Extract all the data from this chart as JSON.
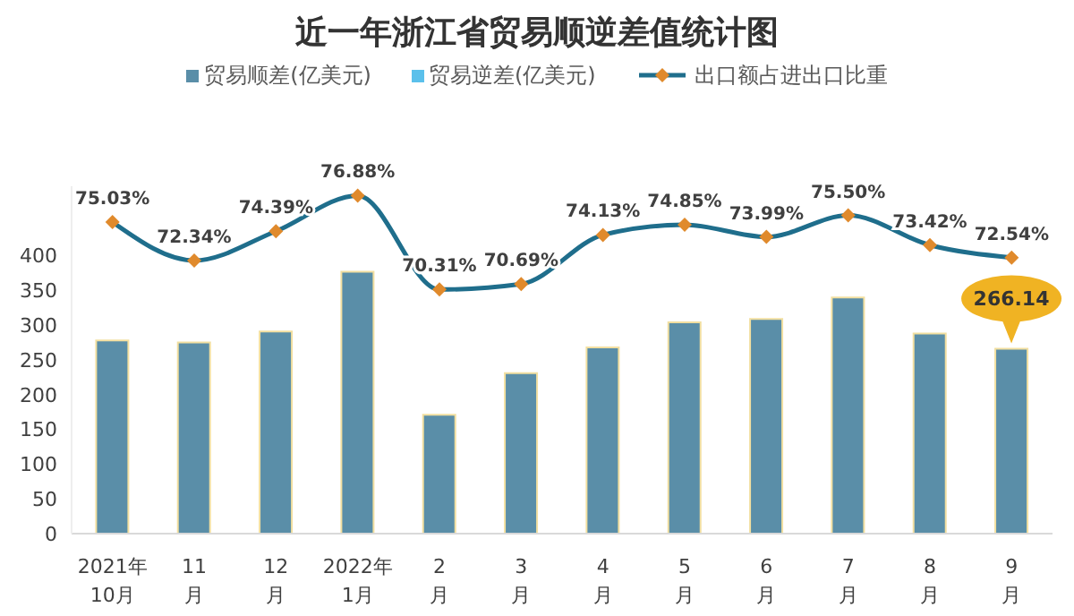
{
  "chart_data": {
    "type": "bar",
    "title": "近一年浙江省贸易顺逆差值统计图",
    "categories": [
      "2021年\n10月",
      "11\n月",
      "12\n月",
      "2022年\n1月",
      "2\n月",
      "3\n月",
      "4\n月",
      "5\n月",
      "6\n月",
      "7\n月",
      "8\n月",
      "9\n月"
    ],
    "series": [
      {
        "name": "贸易顺差(亿美元)",
        "color": "#5a8ea8",
        "values": [
          278,
          275,
          291,
          377,
          171,
          231,
          268,
          304,
          309,
          340,
          288,
          266.14
        ],
        "value_labels": [
          null,
          null,
          null,
          null,
          null,
          null,
          null,
          null,
          null,
          null,
          null,
          "266.14"
        ]
      },
      {
        "name": "贸易逆差(亿美元)",
        "color": "#5bc0eb",
        "values": [
          null,
          null,
          null,
          null,
          null,
          null,
          null,
          null,
          null,
          null,
          null,
          null
        ]
      },
      {
        "name": "出口额占进出口比重",
        "type": "line",
        "axis": "y2",
        "color": "#1f6e8c",
        "marker": "diamond",
        "values": [
          75.03,
          72.34,
          74.39,
          76.88,
          70.31,
          70.69,
          74.13,
          74.85,
          73.99,
          75.5,
          73.42,
          72.54
        ],
        "value_labels": [
          "75.03%",
          "72.34%",
          "74.39%",
          "76.88%",
          "70.31%",
          "70.69%",
          "74.13%",
          "74.85%",
          "73.99%",
          "75.50%",
          "73.42%",
          "72.54%"
        ]
      }
    ],
    "ylim": [
      0,
      500
    ],
    "yticks": [
      0,
      50,
      100,
      150,
      200,
      250,
      300,
      350,
      400
    ],
    "tick_labels": "x_and_y",
    "grid": false,
    "legend": "top"
  }
}
